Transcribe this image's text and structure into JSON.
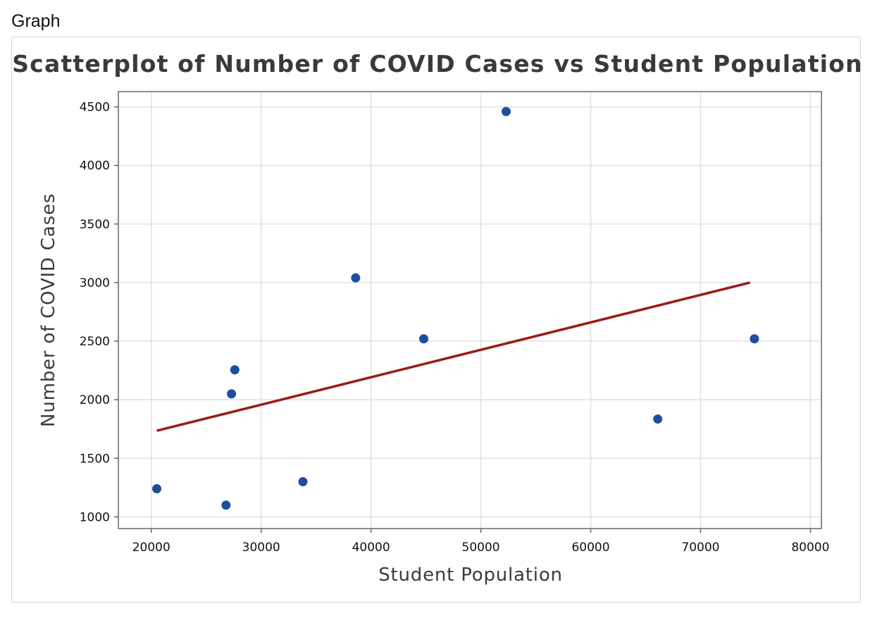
{
  "window": {
    "label": "Graph"
  },
  "chart_data": {
    "type": "scatter",
    "title": "Scatterplot of Number of COVID Cases vs Student Population",
    "xlabel": "Student Population",
    "ylabel": "Number of COVID Cases",
    "xlim": [
      17000,
      81000
    ],
    "ylim": [
      900,
      4630
    ],
    "x_ticks": [
      20000,
      30000,
      40000,
      50000,
      60000,
      70000,
      80000
    ],
    "y_ticks": [
      1000,
      1500,
      2000,
      2500,
      3000,
      3500,
      4000,
      4500
    ],
    "grid": true,
    "series": [
      {
        "name": "Observations",
        "color": "#1f4ea0",
        "points": [
          {
            "x": 20500,
            "y": 1240
          },
          {
            "x": 26800,
            "y": 1100
          },
          {
            "x": 27300,
            "y": 2050
          },
          {
            "x": 27600,
            "y": 2255
          },
          {
            "x": 33800,
            "y": 1300
          },
          {
            "x": 38600,
            "y": 3040
          },
          {
            "x": 44800,
            "y": 2520
          },
          {
            "x": 52300,
            "y": 4460
          },
          {
            "x": 66100,
            "y": 1835
          },
          {
            "x": 74900,
            "y": 2520
          }
        ]
      }
    ],
    "fit_line": {
      "name": "Regression line",
      "color": "#9a1b17",
      "x": [
        20500,
        74500
      ],
      "y": [
        1735,
        3000
      ]
    }
  }
}
